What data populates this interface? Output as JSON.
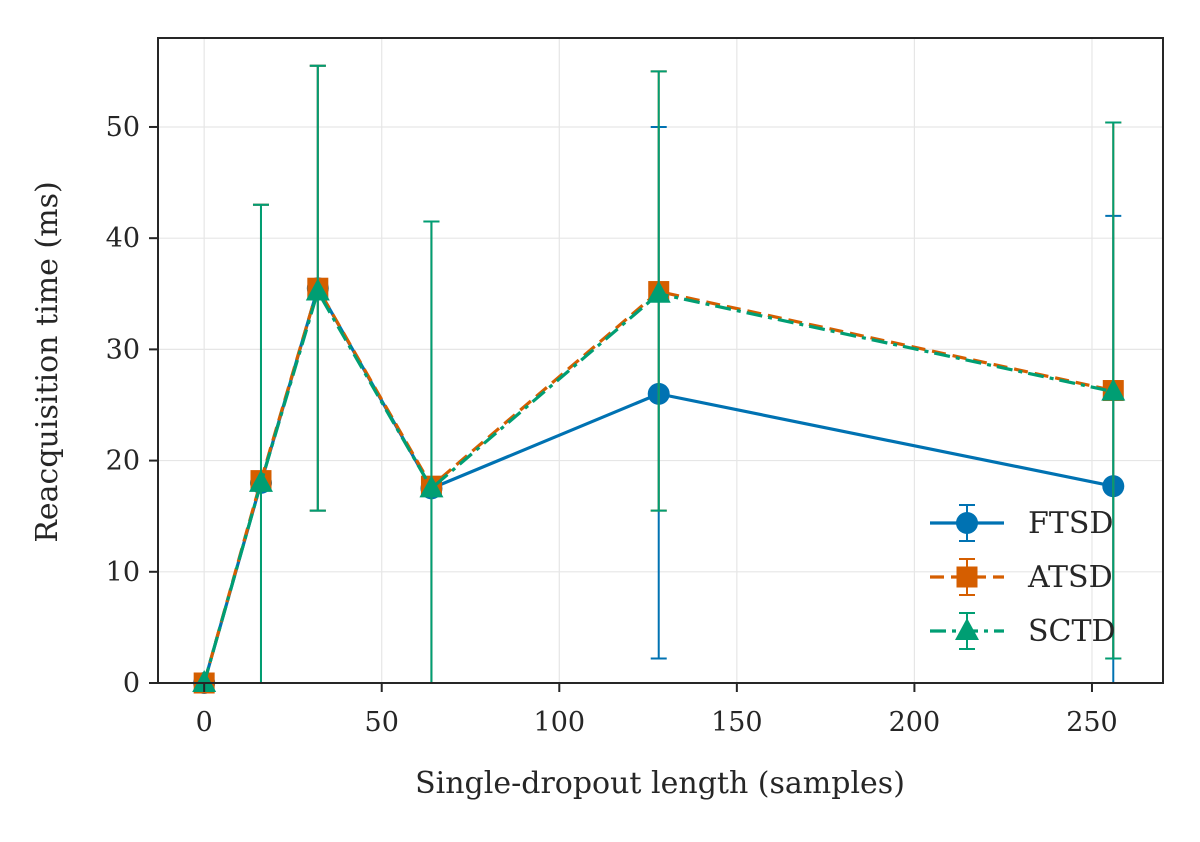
{
  "chart_data": {
    "type": "line",
    "title": "",
    "xlabel": "Single-dropout length (samples)",
    "ylabel": "Reacquisition time (ms)",
    "xlim": [
      -13,
      270
    ],
    "ylim": [
      0,
      58
    ],
    "xticks": [
      0,
      50,
      100,
      150,
      200,
      250
    ],
    "yticks": [
      0,
      10,
      20,
      30,
      40,
      50
    ],
    "grid": true,
    "legend_position": "lower-right",
    "x": [
      0,
      16,
      32,
      64,
      128,
      256
    ],
    "series": [
      {
        "name": "FTSD",
        "color": "#0072B2",
        "marker": "circle",
        "linestyle": "solid",
        "values": [
          0,
          18,
          35.5,
          17.5,
          26,
          17.7
        ],
        "err_low": [
          0,
          0,
          15.5,
          0,
          2.2,
          0
        ],
        "err_high": [
          0,
          43,
          55.5,
          41.5,
          50,
          42
        ]
      },
      {
        "name": "ATSD",
        "color": "#D55E00",
        "marker": "square",
        "linestyle": "dashed",
        "values": [
          0,
          18.2,
          35.5,
          17.7,
          35.2,
          26.3
        ],
        "err_low": [
          0,
          0,
          15.5,
          0,
          15.5,
          2.2
        ],
        "err_high": [
          0,
          43,
          55.5,
          41.5,
          55,
          50.4
        ]
      },
      {
        "name": "SCTD",
        "color": "#009E73",
        "marker": "triangle",
        "linestyle": "dashdot",
        "values": [
          0,
          18,
          35.2,
          17.5,
          35,
          26.2
        ],
        "err_low": [
          0,
          0,
          15.5,
          0,
          15.5,
          2.2
        ],
        "err_high": [
          0,
          43,
          55.5,
          41.5,
          55,
          50.4
        ]
      }
    ]
  }
}
